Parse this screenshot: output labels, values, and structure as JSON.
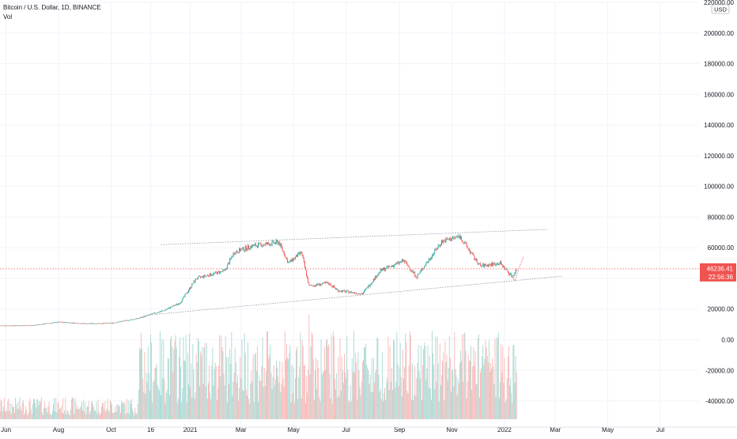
{
  "header": {
    "symbol": "Bitcoin / U.S. Dollar, 1D, BINANCE",
    "indicator": "Vol"
  },
  "currency_badge": "USD",
  "price_tag": {
    "price": "46236.41",
    "countdown": "22:56:36"
  },
  "colors": {
    "up": "#26a69a",
    "down": "#ef5350",
    "up_vol": "#a8d8d3",
    "down_vol": "#f7b7b5",
    "price_line": "#ef5350",
    "channel": "#9598a1",
    "text": "#131722",
    "axis_text": "#131722"
  },
  "chart_data": {
    "type": "candlestick",
    "title": "",
    "xlabel": "",
    "ylabel": "",
    "ylim": [
      -57000,
      220000
    ],
    "y_ticks": [
      220000,
      200000,
      180000,
      160000,
      140000,
      120000,
      100000,
      80000,
      60000,
      40000,
      20000,
      0,
      -20000,
      -40000
    ],
    "y_tick_labels": [
      "220000.00",
      "200000.00",
      "180000.00",
      "160000.00",
      "140000.00",
      "120000.00",
      "100000.00",
      "80000.00",
      "60000.00",
      "40000.00",
      "20000.00",
      "0.00",
      "-20000.00",
      "-40000.00"
    ],
    "x_ticks": [
      {
        "label": "Jun",
        "date": "2020-06-01"
      },
      {
        "label": "Aug",
        "date": "2020-08-01"
      },
      {
        "label": "Oct",
        "date": "2020-10-01"
      },
      {
        "label": "16",
        "date": "2020-11-16"
      },
      {
        "label": "2021",
        "date": "2021-01-01"
      },
      {
        "label": "Mar",
        "date": "2021-03-01"
      },
      {
        "label": "May",
        "date": "2021-05-01"
      },
      {
        "label": "Jul",
        "date": "2021-07-01"
      },
      {
        "label": "Sep",
        "date": "2021-09-01"
      },
      {
        "label": "Nov",
        "date": "2021-11-01"
      },
      {
        "label": "2022",
        "date": "2022-01-01"
      },
      {
        "label": "Mar",
        "date": "2022-03-01"
      },
      {
        "label": "May",
        "date": "2022-05-01"
      },
      {
        "label": "Jul",
        "date": "2022-07-01"
      }
    ],
    "x_range": [
      "2020-05-25",
      "2022-08-15"
    ],
    "grid": true,
    "legend": "none",
    "price_path": [
      {
        "date": "2020-05-25",
        "close": 9200
      },
      {
        "date": "2020-07-01",
        "close": 9300
      },
      {
        "date": "2020-08-01",
        "close": 11500
      },
      {
        "date": "2020-09-01",
        "close": 10500
      },
      {
        "date": "2020-10-01",
        "close": 10800
      },
      {
        "date": "2020-11-01",
        "close": 13800
      },
      {
        "date": "2020-11-16",
        "close": 16500
      },
      {
        "date": "2020-12-01",
        "close": 19000
      },
      {
        "date": "2020-12-20",
        "close": 24000
      },
      {
        "date": "2021-01-08",
        "close": 40000
      },
      {
        "date": "2021-02-10",
        "close": 45000
      },
      {
        "date": "2021-02-21",
        "close": 57000
      },
      {
        "date": "2021-03-13",
        "close": 61000
      },
      {
        "date": "2021-04-14",
        "close": 63500
      },
      {
        "date": "2021-04-25",
        "close": 50000
      },
      {
        "date": "2021-05-10",
        "close": 57000
      },
      {
        "date": "2021-05-19",
        "close": 35000
      },
      {
        "date": "2021-06-10",
        "close": 37000
      },
      {
        "date": "2021-06-22",
        "close": 32000
      },
      {
        "date": "2021-07-20",
        "close": 30000
      },
      {
        "date": "2021-08-10",
        "close": 45000
      },
      {
        "date": "2021-09-06",
        "close": 51500
      },
      {
        "date": "2021-09-21",
        "close": 41000
      },
      {
        "date": "2021-10-20",
        "close": 64000
      },
      {
        "date": "2021-11-10",
        "close": 67500
      },
      {
        "date": "2021-11-26",
        "close": 54000
      },
      {
        "date": "2021-12-04",
        "close": 48000
      },
      {
        "date": "2021-12-27",
        "close": 50000
      },
      {
        "date": "2022-01-10",
        "close": 41000
      },
      {
        "date": "2022-01-15",
        "close": 46236
      }
    ],
    "annotations": [
      {
        "type": "trendline",
        "name": "upper-channel",
        "start": {
          "date": "2020-11-28",
          "price": 62000
        },
        "end": {
          "date": "2022-02-20",
          "price": 72000
        }
      },
      {
        "type": "trendline",
        "name": "lower-channel",
        "start": {
          "date": "2020-11-12",
          "price": 16000
        },
        "end": {
          "date": "2022-03-10",
          "price": 41500
        }
      },
      {
        "type": "horizontal-line",
        "name": "last-price-line",
        "price": 46236.41
      },
      {
        "type": "projection",
        "name": "projection-path",
        "points": [
          {
            "date": "2022-01-10",
            "price": 41000
          },
          {
            "date": "2022-01-13",
            "price": 38500
          },
          {
            "date": "2022-01-18",
            "price": 47000
          },
          {
            "date": "2022-01-23",
            "price": 54000
          }
        ]
      }
    ]
  }
}
